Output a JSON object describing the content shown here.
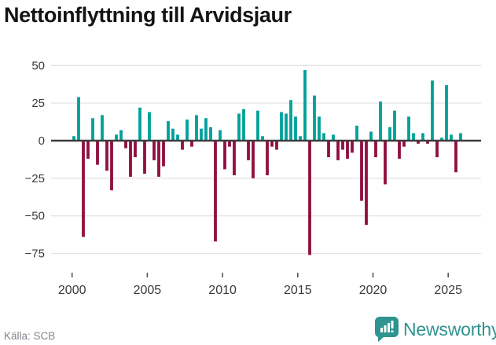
{
  "title": "Nettoinflyttning till Arvidsjaur",
  "source": "Källa: SCB",
  "logo": {
    "text": "Newsworthy"
  },
  "colors": {
    "positive": "#00a19a",
    "negative": "#8f1040",
    "axis_line": "#3d3d3d",
    "gridline": "#e4e4e4",
    "tick_mark": "#555555",
    "axis_label": "#3a3a3a",
    "title_text": "#141414",
    "source_text": "#82868e",
    "logo_teal": "#2f9390",
    "background": "#ffffff"
  },
  "chart_data": {
    "type": "bar",
    "title": "Nettoinflyttning till Arvidsjaur",
    "xlabel": "",
    "ylabel": "",
    "x_axis": {
      "start_year": 2000,
      "end_year": 2025.7,
      "tick_years": [
        2000,
        2005,
        2010,
        2015,
        2020,
        2025
      ]
    },
    "x_tick_labels": [
      "2000",
      "2005",
      "2010",
      "2015",
      "2020",
      "2025"
    ],
    "y_ticks": [
      50,
      25,
      0,
      -25,
      -50,
      -75
    ],
    "y_tick_labels": [
      "50",
      "25",
      "0",
      "−25",
      "−50",
      "−75"
    ],
    "ylim": [
      -80,
      55
    ],
    "grid": "horizontal-only",
    "legend": "none",
    "bar_color_rule": "positive teal, negative dark red",
    "values": [
      3,
      29,
      -64,
      -12,
      15,
      -16,
      17,
      -20,
      -33,
      4,
      7,
      -5,
      -24,
      -11,
      22,
      -22,
      19,
      -13,
      -24,
      -17,
      13,
      8,
      4,
      -6,
      14,
      -4,
      17,
      8,
      15,
      9,
      -67,
      7,
      -19,
      -4,
      -23,
      18,
      21,
      -13,
      -25,
      20,
      3,
      -23,
      -4,
      -6,
      19,
      18,
      27,
      16,
      3,
      47,
      -76,
      30,
      16,
      5,
      -11,
      4,
      -13,
      -6,
      -12,
      -8,
      10,
      -40,
      -56,
      6,
      -11,
      26,
      -29,
      9,
      20,
      -12,
      -4,
      16,
      5,
      -2,
      5,
      -2,
      40,
      -11,
      2,
      37,
      4,
      -21,
      5
    ]
  }
}
